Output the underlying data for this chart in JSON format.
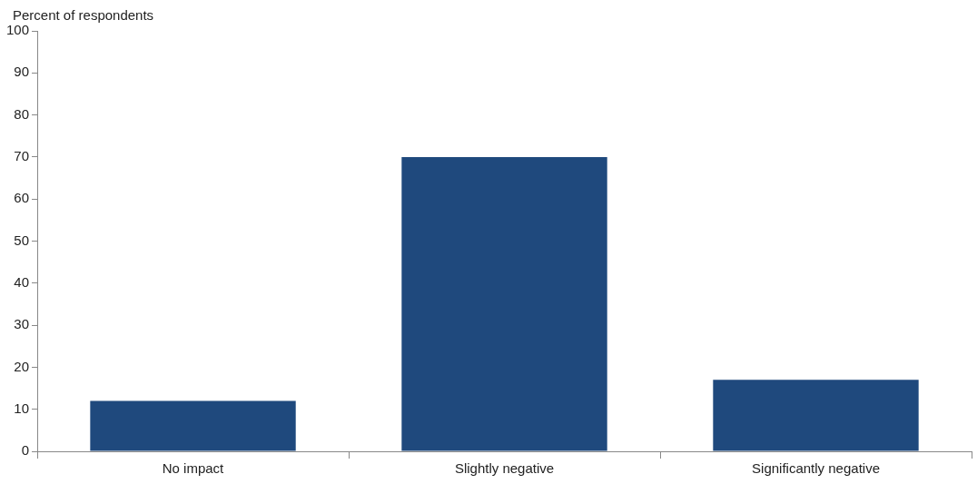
{
  "chart_data": {
    "type": "bar",
    "ylabel": "Percent of respondents",
    "categories": [
      "No impact",
      "Slightly negative",
      "Significantly negative"
    ],
    "values": [
      12,
      70,
      17
    ],
    "color": "#1f497d",
    "ylim": [
      0,
      100
    ],
    "yticks": [
      0,
      10,
      20,
      30,
      40,
      50,
      60,
      70,
      80,
      90,
      100
    ],
    "grid": false,
    "legend": false
  }
}
